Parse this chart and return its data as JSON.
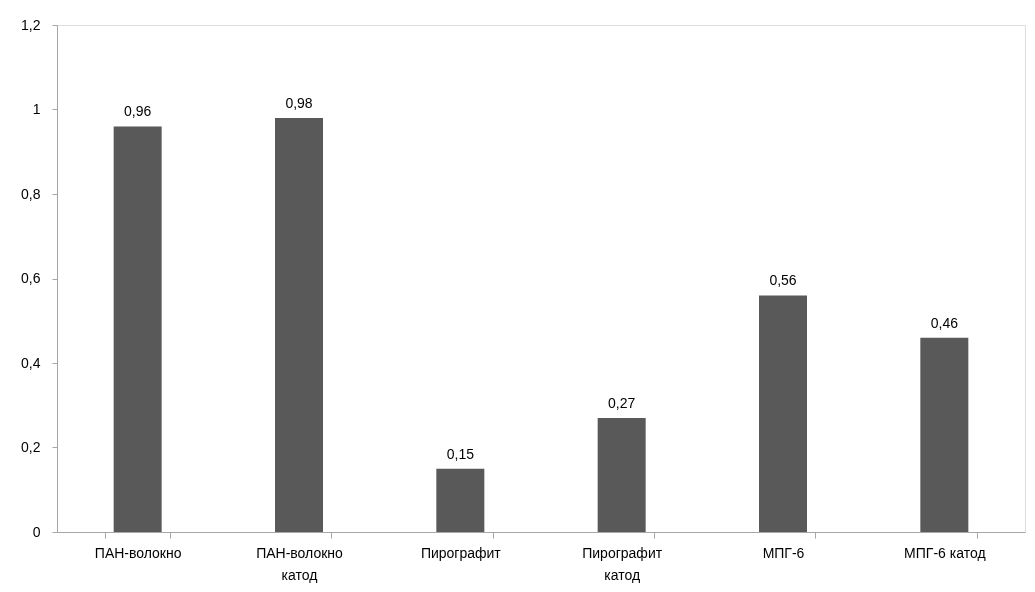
{
  "chart_data": {
    "type": "bar",
    "categories": [
      "ПАН-волокно",
      "ПАН-волокно катод",
      "Пирографит",
      "Пирографит катод",
      "МПГ-6",
      "МПГ-6 катод"
    ],
    "values": [
      0.96,
      0.98,
      0.15,
      0.27,
      0.56,
      0.46
    ],
    "value_labels": [
      "0,96",
      "0,98",
      "0,15",
      "0,27",
      "0,56",
      "0,46"
    ],
    "color": "#595959",
    "ylim": [
      0,
      1.2
    ],
    "yticks": [
      0,
      {
        "value": 0.2,
        "label": "0,2"
      },
      {
        "value": 0.4,
        "label": "0,4"
      },
      {
        "value": 0.6,
        "label": "0,6"
      },
      {
        "value": 0.8,
        "label": "0,8"
      },
      1,
      {
        "value": 1.2,
        "label": "1,2"
      }
    ],
    "grid": false
  }
}
